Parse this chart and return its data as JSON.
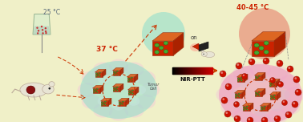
{
  "bg_color": "#f0f0c8",
  "temp_25": "25 °C",
  "temp_37": "37 °C",
  "temp_40_45": "40-45 °C",
  "label_on": "on",
  "label_nir": "NIR-PTT",
  "label_tumor": "Tumor\nCell",
  "temp_color_25": "#556677",
  "temp_color_37": "#cc2200",
  "temp_color_40_45": "#cc2200",
  "arrow_color": "#cc4400",
  "cube_red": "#cc2200",
  "cube_orange": "#dd6622",
  "cube_dark": "#aa2200",
  "cube_dot": "#44aa33",
  "cube_outline": "#993311",
  "hydrogel_teal": "#88ddcc",
  "hydrogel_pink": "#ee88bb",
  "cell_pink": "#ddaabb",
  "cell_green": "#aaddcc",
  "sphere_red": "#cc1100",
  "mouse_body": "#e8e4d4",
  "mouse_outline": "#bbaa99",
  "tumor_color": "#881111",
  "beaker_body": "#ddeecc",
  "beaker_outline": "#88aa88",
  "beaker_liquid": "#aaccbb",
  "nir_glow_color": "#dd3333"
}
